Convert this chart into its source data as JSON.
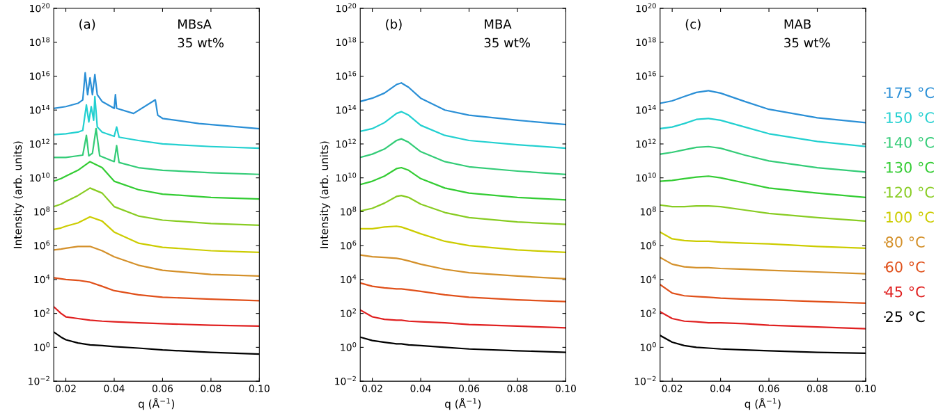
{
  "chart_data": [
    {
      "type": "line",
      "xlabel": "q (Å$^{−1}$)",
      "ylabel": "Intensity (arb. units)",
      "annotations": [
        "(a)",
        "MBsA",
        "35 wt%"
      ],
      "log": "y",
      "grid": false,
      "legend": false,
      "xlim": [
        0.015,
        0.1
      ],
      "xticks": [
        {
          "value": 0.02,
          "label": "0.02"
        },
        {
          "value": 0.04,
          "label": "0.04"
        },
        {
          "value": 0.06,
          "label": "0.06"
        },
        {
          "value": 0.08,
          "label": "0.08"
        },
        {
          "value": 0.1,
          "label": "0.10"
        }
      ],
      "ylim": [
        0.01,
        1e+20
      ],
      "yticks": [
        {
          "value": 0.01,
          "label": "10$^{−2}$"
        },
        {
          "value": 1,
          "label": "10$^{0}$"
        },
        {
          "value": 100,
          "label": "10$^{2}$"
        },
        {
          "value": 10000.0,
          "label": "10$^{4}$"
        },
        {
          "value": 1000000.0,
          "label": "10$^{6}$"
        },
        {
          "value": 100000000.0,
          "label": "10$^{8}$"
        },
        {
          "value": 10000000000.0,
          "label": "10$^{10}$"
        },
        {
          "value": 1000000000000.0,
          "label": "10$^{12}$"
        },
        {
          "value": 100000000000000.0,
          "label": "10$^{14}$"
        },
        {
          "value": 1e+16,
          "label": "10$^{16}$"
        },
        {
          "value": 1e+18,
          "label": "10$^{18}$"
        },
        {
          "value": 1e+20,
          "label": "10$^{20}$"
        }
      ],
      "x": [
        0.015,
        0.018,
        0.02,
        0.025,
        0.03,
        0.035,
        0.04,
        0.05,
        0.06,
        0.08,
        0.1
      ],
      "series": [
        {
          "color": "#000000",
          "values": [
            8,
            4,
            2.8,
            1.8,
            1.4,
            1.26,
            1.1,
            0.9,
            0.7,
            0.5,
            0.4
          ]
        },
        {
          "color": "#e02020",
          "values": [
            250,
            100,
            63,
            50,
            40,
            35,
            32,
            28,
            25,
            20,
            18
          ]
        },
        {
          "color": "#e0501a",
          "values": [
            12600,
            11000,
            10000,
            9000,
            7000,
            4000,
            2200,
            1260,
            900,
            700,
            560
          ]
        },
        {
          "color": "#d4902a",
          "values": [
            560000.0,
            630000.0,
            700000.0,
            900000.0,
            900000.0,
            500000.0,
            220000.0,
            70000.0,
            35000.0,
            20000.0,
            16000.0
          ]
        },
        {
          "color": "#cccc00",
          "values": [
            9000000.0,
            11000000.0,
            14000000.0,
            22000000.0,
            50000000.0,
            28000000.0,
            6300000.0,
            1400000.0,
            800000.0,
            500000.0,
            400000.0
          ]
        },
        {
          "color": "#88cc22",
          "values": [
            200000000.0,
            280000000.0,
            400000000.0,
            900000000.0,
            2500000000.0,
            1260000000.0,
            200000000.0,
            56000000.0,
            32000000.0,
            20000000.0,
            16000000.0
          ]
        },
        {
          "color": "#33cc33",
          "values": [
            6300000000.0,
            9000000000.0,
            12600000000.0,
            28000000000.0,
            90000000000.0,
            40000000000.0,
            6300000000.0,
            2000000000.0,
            1100000000.0,
            700000000.0,
            560000000.0
          ]
        },
        {
          "color": "#33cc77",
          "x": [
            0.015,
            0.02,
            0.025,
            0.027,
            0.0285,
            0.0295,
            0.031,
            0.0325,
            0.034,
            0.04,
            0.041,
            0.042,
            0.05,
            0.06,
            0.08,
            0.1
          ],
          "values": [
            160000000000.0,
            160000000000.0,
            200000000000.0,
            220000000000.0,
            3200000000000.0,
            200000000000.0,
            280000000000.0,
            8000000000000.0,
            200000000000.0,
            90000000000.0,
            800000000000.0,
            80000000000.0,
            40000000000.0,
            28000000000.0,
            20000000000.0,
            16000000000.0
          ]
        },
        {
          "color": "#22d0d0",
          "x": [
            0.015,
            0.02,
            0.025,
            0.027,
            0.0285,
            0.0295,
            0.0305,
            0.0315,
            0.032,
            0.033,
            0.035,
            0.04,
            0.041,
            0.042,
            0.05,
            0.06,
            0.08,
            0.1
          ],
          "values": [
            3500000000000.0,
            4000000000000.0,
            5000000000000.0,
            6300000000000.0,
            200000000000000.0,
            20000000000000.0,
            160000000000000.0,
            25000000000000.0,
            630000000000000.0,
            10000000000000.0,
            5000000000000.0,
            2800000000000.0,
            10000000000000.0,
            2500000000000.0,
            1600000000000.0,
            1000000000000.0,
            700000000000.0,
            560000000000.0
          ]
        },
        {
          "color": "#2a8fd6",
          "x": [
            0.015,
            0.02,
            0.025,
            0.027,
            0.028,
            0.029,
            0.03,
            0.031,
            0.032,
            0.033,
            0.035,
            0.04,
            0.0405,
            0.041,
            0.048,
            0.057,
            0.058,
            0.06,
            0.075,
            0.1
          ],
          "values": [
            126000000000000.0,
            160000000000000.0,
            250000000000000.0,
            400000000000000.0,
            1.6e+16,
            800000000000000.0,
            8000000000000000.0,
            800000000000000.0,
            1.26e+16,
            800000000000000.0,
            320000000000000.0,
            126000000000000.0,
            800000000000000.0,
            126000000000000.0,
            63000000000000.0,
            400000000000000.0,
            50000000000000.0,
            32000000000000.0,
            16000000000000.0,
            8000000000000.0
          ]
        }
      ]
    },
    {
      "type": "line",
      "xlabel": "q (Å$^{−1}$)",
      "ylabel": "Intensity (arb. units)",
      "annotations": [
        "(b)",
        "MBA",
        "35 wt%"
      ],
      "log": "y",
      "grid": false,
      "legend": false,
      "xlim": [
        0.015,
        0.1
      ],
      "xticks": [
        {
          "value": 0.02,
          "label": "0.02"
        },
        {
          "value": 0.04,
          "label": "0.04"
        },
        {
          "value": 0.06,
          "label": "0.06"
        },
        {
          "value": 0.08,
          "label": "0.08"
        },
        {
          "value": 0.1,
          "label": "0.10"
        }
      ],
      "ylim": [
        0.01,
        1e+20
      ],
      "yticks": [
        {
          "value": 0.01,
          "label": "10$^{−2}$"
        },
        {
          "value": 1,
          "label": "10$^{0}$"
        },
        {
          "value": 100,
          "label": "10$^{2}$"
        },
        {
          "value": 10000.0,
          "label": "10$^{4}$"
        },
        {
          "value": 1000000.0,
          "label": "10$^{6}$"
        },
        {
          "value": 100000000.0,
          "label": "10$^{8}$"
        },
        {
          "value": 10000000000.0,
          "label": "10$^{10}$"
        },
        {
          "value": 1000000000000.0,
          "label": "10$^{12}$"
        },
        {
          "value": 100000000000000.0,
          "label": "10$^{14}$"
        },
        {
          "value": 1e+16,
          "label": "10$^{16}$"
        },
        {
          "value": 1e+18,
          "label": "10$^{18}$"
        },
        {
          "value": 1e+20,
          "label": "10$^{20}$"
        }
      ],
      "x": [
        0.015,
        0.02,
        0.025,
        0.03,
        0.032,
        0.035,
        0.04,
        0.05,
        0.06,
        0.08,
        0.1
      ],
      "series": [
        {
          "color": "#000000",
          "values": [
            4,
            2.5,
            2,
            1.6,
            1.6,
            1.4,
            1.26,
            1,
            0.8,
            0.63,
            0.5
          ]
        },
        {
          "color": "#e02020",
          "values": [
            160,
            63,
            45,
            40,
            40,
            35,
            32,
            28,
            22,
            18,
            14
          ]
        },
        {
          "color": "#e0501a",
          "values": [
            6300,
            4000,
            3200,
            2800,
            2800,
            2500,
            2000,
            1260,
            900,
            630,
            500
          ]
        },
        {
          "color": "#d4902a",
          "values": [
            280000.0,
            220000.0,
            200000.0,
            180000.0,
            160000.0,
            126000.0,
            80000.0,
            40000.0,
            25000.0,
            16000.0,
            11000.0
          ]
        },
        {
          "color": "#cccc00",
          "values": [
            10000000.0,
            10000000.0,
            12600000.0,
            14000000.0,
            12600000.0,
            9000000.0,
            5000000.0,
            1800000.0,
            1000000.0,
            560000.0,
            400000.0
          ]
        },
        {
          "color": "#88cc22",
          "values": [
            110000000.0,
            160000000.0,
            320000000.0,
            800000000.0,
            900000000.0,
            700000000.0,
            280000000.0,
            90000000.0,
            45000000.0,
            25000000.0,
            18000000.0
          ]
        },
        {
          "color": "#33cc33",
          "values": [
            4000000000.0,
            6300000000.0,
            12600000000.0,
            35000000000.0,
            40000000000.0,
            28000000000.0,
            9000000000.0,
            2500000000.0,
            1260000000.0,
            700000000.0,
            500000000.0
          ]
        },
        {
          "color": "#33cc77",
          "values": [
            160000000000.0,
            250000000000.0,
            500000000000.0,
            1600000000000.0,
            2000000000000.0,
            1260000000000.0,
            350000000000.0,
            90000000000.0,
            45000000000.0,
            25000000000.0,
            16000000000.0
          ]
        },
        {
          "color": "#22d0d0",
          "values": [
            5600000000000.0,
            8000000000000.0,
            18000000000000.0,
            63000000000000.0,
            80000000000000.0,
            50000000000000.0,
            12600000000000.0,
            3200000000000.0,
            1600000000000.0,
            900000000000.0,
            560000000000.0
          ]
        },
        {
          "color": "#2a8fd6",
          "values": [
            320000000000000.0,
            500000000000000.0,
            1000000000000000.0,
            3200000000000000.0,
            4000000000000000.0,
            2200000000000000.0,
            500000000000000.0,
            100000000000000.0,
            50000000000000.0,
            25000000000000.0,
            14000000000000.0
          ]
        }
      ]
    },
    {
      "type": "line",
      "xlabel": "q (Å$^{−1}$)",
      "annotations": [
        "(c)",
        "MAB",
        "35 wt%"
      ],
      "log": "y",
      "grid": false,
      "legend": "right",
      "xlim": [
        0.015,
        0.1
      ],
      "xticks": [
        {
          "value": 0.02,
          "label": "0.02"
        },
        {
          "value": 0.04,
          "label": "0.04"
        },
        {
          "value": 0.06,
          "label": "0.06"
        },
        {
          "value": 0.08,
          "label": "0.08"
        },
        {
          "value": 0.1,
          "label": "0.10"
        }
      ],
      "ylim": [
        0.01,
        1e+20
      ],
      "yticks": [
        {
          "value": 0.01,
          "label": "10$^{−2}$"
        },
        {
          "value": 1,
          "label": "10$^{0}$"
        },
        {
          "value": 100,
          "label": "10$^{2}$"
        },
        {
          "value": 10000.0,
          "label": "10$^{4}$"
        },
        {
          "value": 1000000.0,
          "label": "10$^{6}$"
        },
        {
          "value": 100000000.0,
          "label": "10$^{8}$"
        },
        {
          "value": 10000000000.0,
          "label": "10$^{10}$"
        },
        {
          "value": 1000000000000.0,
          "label": "10$^{12}$"
        },
        {
          "value": 100000000000000.0,
          "label": "10$^{14}$"
        },
        {
          "value": 1e+16,
          "label": "10$^{16}$"
        },
        {
          "value": 1e+18,
          "label": "10$^{18}$"
        },
        {
          "value": 1e+20,
          "label": "10$^{20}$"
        }
      ],
      "x": [
        0.015,
        0.02,
        0.025,
        0.03,
        0.035,
        0.04,
        0.05,
        0.06,
        0.08,
        0.1
      ],
      "series": [
        {
          "name": "25 °C",
          "color": "#000000",
          "values": [
            5,
            2,
            1.26,
            1,
            0.9,
            0.8,
            0.7,
            0.63,
            0.5,
            0.45
          ]
        },
        {
          "name": "45 °C",
          "color": "#e02020",
          "values": [
            126,
            50,
            35,
            32,
            28,
            28,
            25,
            20,
            16,
            12.6
          ]
        },
        {
          "name": "60 °C",
          "color": "#e0501a",
          "values": [
            5000,
            1600,
            1100,
            1000,
            900,
            800,
            700,
            630,
            500,
            400
          ]
        },
        {
          "name": "80 °C",
          "color": "#d4902a",
          "values": [
            200000.0,
            80000.0,
            56000.0,
            50000.0,
            50000.0,
            45000.0,
            40000.0,
            35000.0,
            28000.0,
            22000.0
          ]
        },
        {
          "name": "100 °C",
          "color": "#cccc00",
          "values": [
            6300000.0,
            2500000.0,
            2000000.0,
            1800000.0,
            1800000.0,
            1600000.0,
            1400000.0,
            1260000.0,
            900000.0,
            700000.0
          ]
        },
        {
          "name": "120 °C",
          "color": "#88cc22",
          "values": [
            250000000.0,
            200000000.0,
            200000000.0,
            220000000.0,
            220000000.0,
            200000000.0,
            126000000.0,
            80000000.0,
            45000000.0,
            28000000.0
          ]
        },
        {
          "name": "130 °C",
          "color": "#33cc33",
          "values": [
            6300000000.0,
            7000000000.0,
            9000000000.0,
            11000000000.0,
            12600000000.0,
            10000000000.0,
            5000000000.0,
            2500000000.0,
            1260000000.0,
            700000000.0
          ]
        },
        {
          "name": "140 °C",
          "color": "#33cc77",
          "values": [
            250000000000.0,
            320000000000.0,
            450000000000.0,
            630000000000.0,
            700000000000.0,
            560000000000.0,
            220000000000.0,
            100000000000.0,
            40000000000.0,
            22000000000.0
          ]
        },
        {
          "name": "150 °C",
          "color": "#22d0d0",
          "values": [
            8000000000000.0,
            10000000000000.0,
            16000000000000.0,
            28000000000000.0,
            32000000000000.0,
            25000000000000.0,
            10000000000000.0,
            4000000000000.0,
            1400000000000.0,
            700000000000.0
          ]
        },
        {
          "name": "175 °C",
          "color": "#2a8fd6",
          "values": [
            250000000000000.0,
            350000000000000.0,
            630000000000000.0,
            1100000000000000.0,
            1400000000000000.0,
            1000000000000000.0,
            320000000000000.0,
            110000000000000.0,
            35000000000000.0,
            18000000000000.0
          ]
        }
      ]
    }
  ]
}
